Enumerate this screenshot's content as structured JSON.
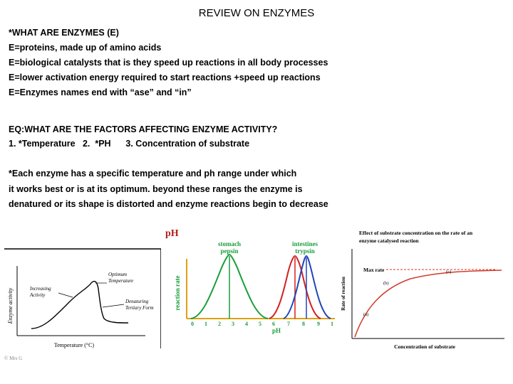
{
  "title": "REVIEW ON ENZYMES",
  "intro": {
    "lines": [
      "*WHAT ARE ENZYMES (E)",
      "E=proteins, made up of amino acids",
      "E=biological catalysts that is they speed up reactions in all body processes",
      "E=lower activation energy required to start reactions +speed up reactions",
      "E=Enzymes names end with “ase” and “in”"
    ]
  },
  "factors": {
    "question": "EQ:WHAT ARE THE FACTORS AFFECTING ENZYME ACTIVITY?",
    "list": "1. *Temperature   2.  *PH      3. Concentration of substrate"
  },
  "note": {
    "lines": [
      "*Each enzyme has a specific temperature and ph range under which",
      "it works best or is at its optimum. beyond these ranges the enzyme is",
      "denatured or its shape is distorted and enzyme reactions begin to decrease"
    ]
  },
  "temp_graph": {
    "ylabel": "Enzyme activity",
    "xlabel": "Temperature (°C)",
    "optimum": [
      "Optimum",
      "Temperature"
    ],
    "increasing": [
      "Increasing",
      "Activity"
    ],
    "denaturing": [
      "Denaturing",
      "Tertiary Form"
    ],
    "footnote": "© Mrs G",
    "colors": {
      "curve": "#000000"
    }
  },
  "ph_graph": {
    "title": "pH",
    "ylabel": "reaction rate",
    "xlabel": "pH",
    "pepsin_label": [
      "stomach",
      "pepsin"
    ],
    "trypsin_label": [
      "intestines",
      "trypsin"
    ],
    "ticks": [
      "0",
      "1",
      "2",
      "3",
      "4",
      "5",
      "6",
      "7",
      "8",
      "9",
      "1"
    ],
    "colors": {
      "pepsin": "#1a9e3a",
      "intestine": "#d42020",
      "trypsin": "#2346b8",
      "labels": "#1a9e3a",
      "title": "#b0201a",
      "axes": "#e0a010"
    }
  },
  "substrate_graph": {
    "title": [
      "Effect of substrate concentration on the rate of an",
      "enzyme catalysed  reaction"
    ],
    "ylabel": "Rate of reaction",
    "xlabel": "Concentration of substrate",
    "max_rate": "Max rate",
    "labels": [
      "(a)",
      "(b)",
      "(c)"
    ],
    "colors": {
      "curve": "#d03a2a"
    }
  }
}
